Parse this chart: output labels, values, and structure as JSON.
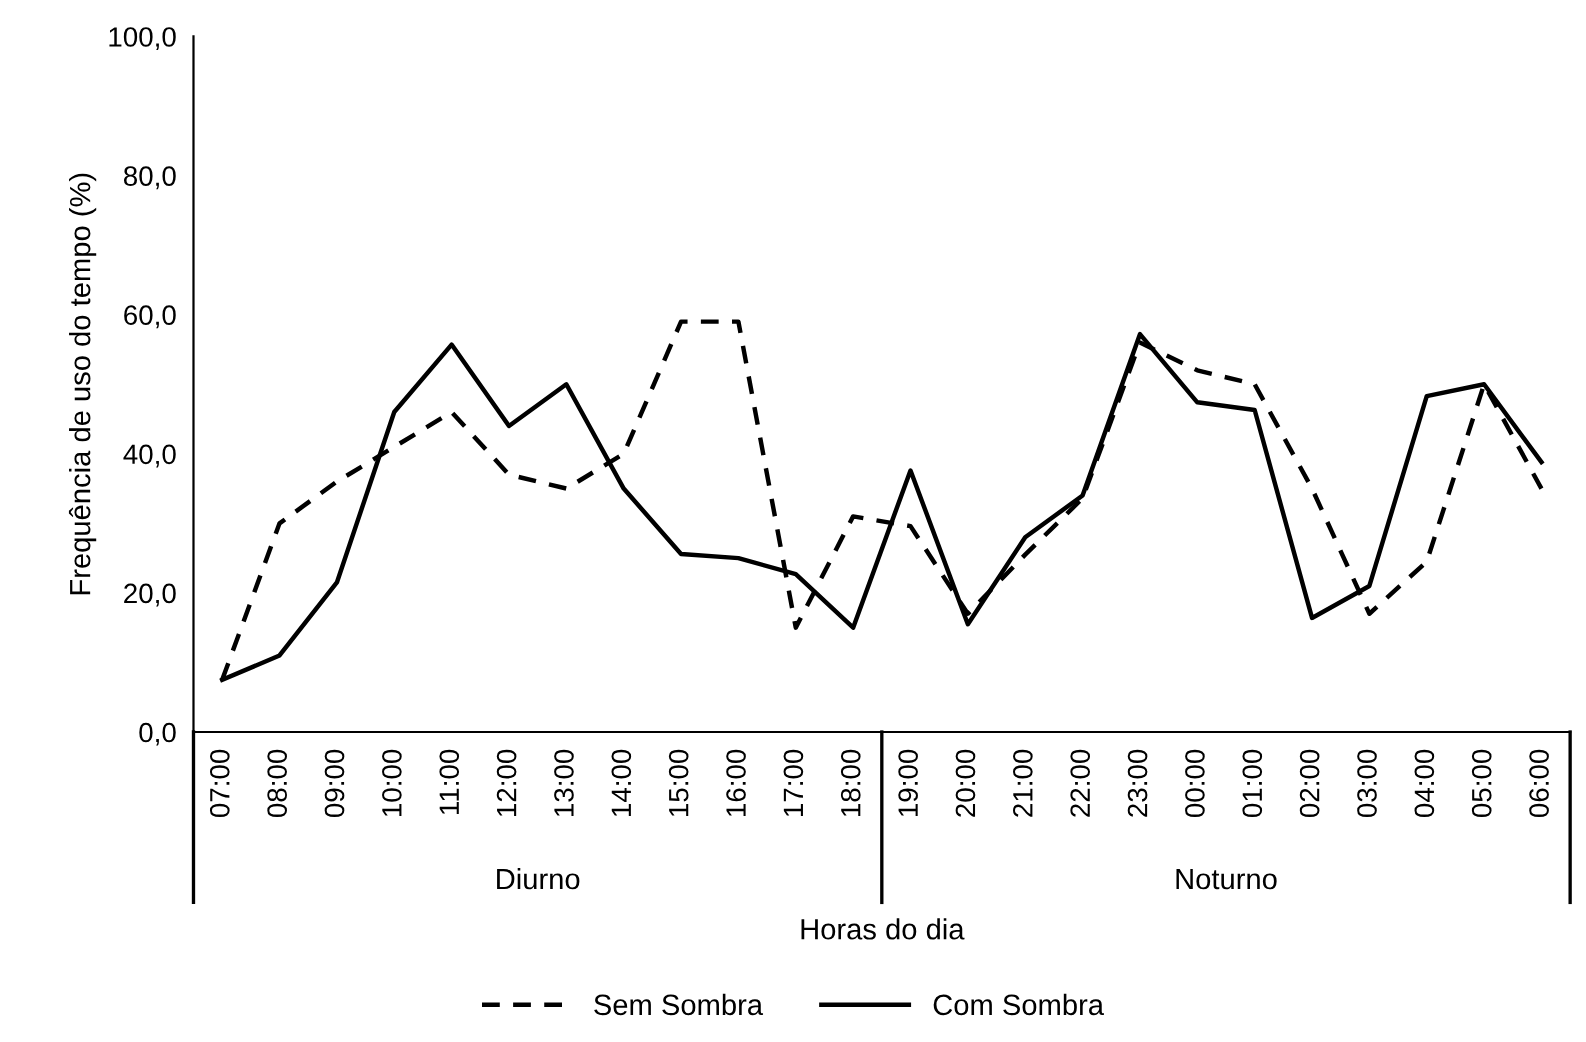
{
  "chart_data": {
    "type": "line",
    "xlabel": "Horas do dia",
    "ylabel": "Frequência de uso do tempo (%)",
    "categories": [
      "07:00",
      "08:00",
      "09:00",
      "10:00",
      "11:00",
      "12:00",
      "13:00",
      "14:00",
      "15:00",
      "16:00",
      "17:00",
      "18:00",
      "19:00",
      "20:00",
      "21:00",
      "22:00",
      "23:00",
      "00:00",
      "01:00",
      "02:00",
      "03:00",
      "04:00",
      "05:00",
      "06:00"
    ],
    "series": [
      {
        "name": "Sem Sombra",
        "color": "#000000",
        "line_style": "dashed",
        "values": [
          7.5,
          30,
          36,
          41,
          46,
          37,
          35,
          40,
          59,
          59,
          15,
          31,
          29.6,
          17,
          25.5,
          33.6,
          56,
          52,
          50,
          35,
          17,
          24.5,
          50,
          35
        ]
      },
      {
        "name": "Com Sombra",
        "color": "#000000",
        "line_style": "solid",
        "values": [
          7.5,
          11,
          21.5,
          46,
          55.7,
          44,
          50,
          35,
          25.6,
          25,
          22.7,
          15,
          37.6,
          15.5,
          28,
          34,
          57.2,
          47.4,
          46.3,
          16.4,
          21,
          48.3,
          50,
          38.8
        ]
      }
    ],
    "ylim": [
      0,
      100
    ],
    "yticks": [
      {
        "value": 0,
        "label": "0,0"
      },
      {
        "value": 20,
        "label": "20,0"
      },
      {
        "value": 40,
        "label": "40,0"
      },
      {
        "value": 60,
        "label": "60,0"
      },
      {
        "value": 80,
        "label": "80,0"
      },
      {
        "value": 100,
        "label": "100,0"
      }
    ],
    "annotations": [
      "Diurno",
      "Noturno"
    ],
    "grid": false,
    "legend": "bottom",
    "marker": "none"
  }
}
